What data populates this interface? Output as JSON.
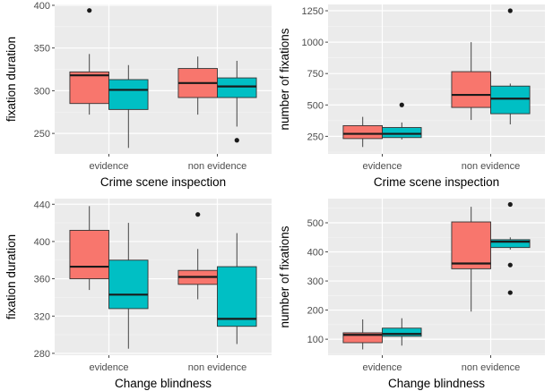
{
  "chart_data": [
    {
      "type": "boxplot",
      "xlabel": "Crime scene inspection",
      "ylabel": "fixation duration",
      "ylim": [
        226,
        401
      ],
      "yticks": [
        250,
        300,
        350,
        400
      ],
      "categories": [
        "evidence",
        "non evidence"
      ],
      "grid": true,
      "series_colors": [
        "#F8766D",
        "#00BFC4"
      ],
      "boxes": [
        {
          "category": "evidence",
          "series": 0,
          "lower_whisker": 272,
          "q1": 285,
          "median": 318,
          "q3": 322,
          "upper_whisker": 343,
          "outliers": [
            394
          ]
        },
        {
          "category": "evidence",
          "series": 1,
          "lower_whisker": 233,
          "q1": 278,
          "median": 301,
          "q3": 313,
          "upper_whisker": 330,
          "outliers": []
        },
        {
          "category": "non evidence",
          "series": 0,
          "lower_whisker": 272,
          "q1": 292,
          "median": 309,
          "q3": 326,
          "upper_whisker": 340,
          "outliers": []
        },
        {
          "category": "non evidence",
          "series": 1,
          "lower_whisker": 258,
          "q1": 292,
          "median": 305,
          "q3": 315,
          "upper_whisker": 335,
          "outliers": [
            242
          ]
        }
      ]
    },
    {
      "type": "boxplot",
      "xlabel": "Crime scene inspection",
      "ylabel": "number of fixations",
      "ylim": [
        110,
        1300
      ],
      "yticks": [
        250,
        500,
        750,
        1000,
        1250
      ],
      "categories": [
        "evidence",
        "non evidence"
      ],
      "grid": true,
      "series_colors": [
        "#F8766D",
        "#00BFC4"
      ],
      "boxes": [
        {
          "category": "evidence",
          "series": 0,
          "lower_whisker": 165,
          "q1": 232,
          "median": 270,
          "q3": 335,
          "upper_whisker": 405,
          "outliers": []
        },
        {
          "category": "evidence",
          "series": 1,
          "lower_whisker": 225,
          "q1": 240,
          "median": 270,
          "q3": 320,
          "upper_whisker": 360,
          "outliers": [
            500
          ]
        },
        {
          "category": "non evidence",
          "series": 0,
          "lower_whisker": 380,
          "q1": 480,
          "median": 580,
          "q3": 765,
          "upper_whisker": 1000,
          "outliers": []
        },
        {
          "category": "non evidence",
          "series": 1,
          "lower_whisker": 345,
          "q1": 430,
          "median": 550,
          "q3": 650,
          "upper_whisker": 670,
          "outliers": [
            1250
          ]
        }
      ]
    },
    {
      "type": "boxplot",
      "xlabel": "Change blindness",
      "ylabel": "fixation duration",
      "ylim": [
        278,
        446
      ],
      "yticks": [
        280,
        320,
        360,
        400,
        440
      ],
      "categories": [
        "evidence",
        "non evidence"
      ],
      "grid": true,
      "series_colors": [
        "#F8766D",
        "#00BFC4"
      ],
      "boxes": [
        {
          "category": "evidence",
          "series": 0,
          "lower_whisker": 348,
          "q1": 360,
          "median": 373,
          "q3": 412,
          "upper_whisker": 438,
          "outliers": []
        },
        {
          "category": "evidence",
          "series": 1,
          "lower_whisker": 285,
          "q1": 328,
          "median": 343,
          "q3": 380,
          "upper_whisker": 420,
          "outliers": []
        },
        {
          "category": "non evidence",
          "series": 0,
          "lower_whisker": 338,
          "q1": 354,
          "median": 362,
          "q3": 369,
          "upper_whisker": 392,
          "outliers": [
            429
          ]
        },
        {
          "category": "non evidence",
          "series": 1,
          "lower_whisker": 290,
          "q1": 309,
          "median": 317,
          "q3": 373,
          "upper_whisker": 409,
          "outliers": []
        }
      ]
    },
    {
      "type": "boxplot",
      "xlabel": "Change blindness",
      "ylabel": "number of fixations",
      "ylim": [
        45,
        583
      ],
      "yticks": [
        100,
        200,
        300,
        400,
        500
      ],
      "categories": [
        "evidence",
        "non evidence"
      ],
      "grid": true,
      "series_colors": [
        "#F8766D",
        "#00BFC4"
      ],
      "boxes": [
        {
          "category": "evidence",
          "series": 0,
          "lower_whisker": 65,
          "q1": 88,
          "median": 115,
          "q3": 122,
          "upper_whisker": 168,
          "outliers": []
        },
        {
          "category": "evidence",
          "series": 1,
          "lower_whisker": 78,
          "q1": 110,
          "median": 118,
          "q3": 138,
          "upper_whisker": 172,
          "outliers": []
        },
        {
          "category": "non evidence",
          "series": 0,
          "lower_whisker": 195,
          "q1": 342,
          "median": 360,
          "q3": 503,
          "upper_whisker": 555,
          "outliers": []
        },
        {
          "category": "non evidence",
          "series": 1,
          "lower_whisker": 408,
          "q1": 415,
          "median": 435,
          "q3": 442,
          "upper_whisker": 450,
          "outliers": [
            260,
            355,
            563
          ]
        }
      ]
    }
  ]
}
